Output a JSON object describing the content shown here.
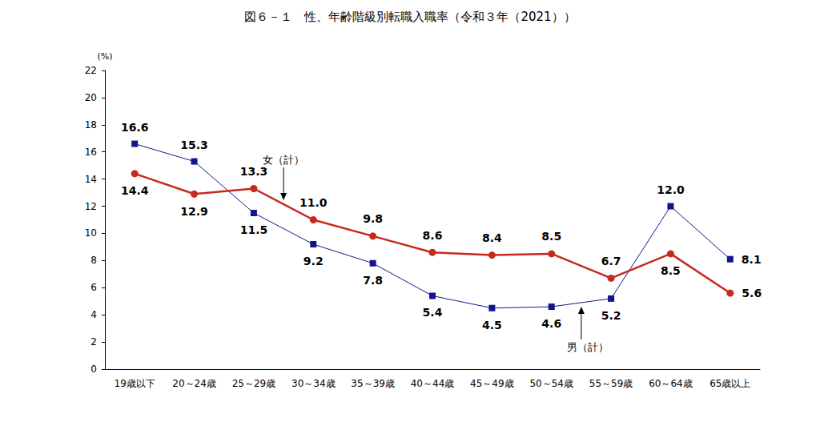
{
  "chart_data": {
    "type": "line",
    "title": "図６－１　性、年齢階級別転職入職率（令和３年（2021））",
    "y_label": "(%)",
    "categories": [
      "19歳以下",
      "20～24歳",
      "25～29歳",
      "30～34歳",
      "35～39歳",
      "40～44歳",
      "45～49歳",
      "50～54歳",
      "55～59歳",
      "60～64歳",
      "65歳以上"
    ],
    "series": [
      {
        "name": "男（計）",
        "color": "#14148c",
        "marker": "square",
        "line_style": "solid",
        "values": [
          16.6,
          15.3,
          11.5,
          9.2,
          7.8,
          5.4,
          4.5,
          4.6,
          5.2,
          12.0,
          8.1
        ],
        "value_labels": [
          "16.6",
          "15.3",
          "11.5",
          "9.2",
          "7.8",
          "5.4",
          "4.5",
          "4.6",
          "5.2",
          "12.0",
          "8.1"
        ]
      },
      {
        "name": "女（計）",
        "color": "#c8281e",
        "marker": "circle",
        "line_style": "solid",
        "values": [
          14.4,
          12.9,
          13.3,
          11.0,
          9.8,
          8.6,
          8.4,
          8.5,
          6.7,
          8.5,
          5.6
        ],
        "value_labels": [
          "14.4",
          "12.9",
          "13.3",
          "11.0",
          "9.8",
          "8.6",
          "8.4",
          "8.5",
          "6.7",
          "8.5",
          "5.6"
        ]
      }
    ],
    "ylim": [
      0,
      22
    ],
    "yticks": [
      0,
      2,
      4,
      6,
      8,
      10,
      12,
      14,
      16,
      18,
      20,
      22
    ],
    "grid": false,
    "data_labels": true
  }
}
